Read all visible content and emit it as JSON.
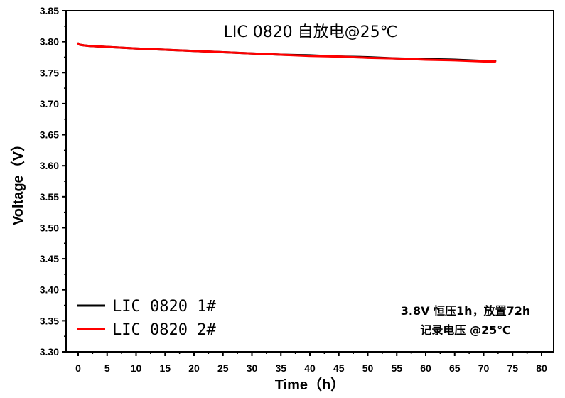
{
  "chart_data": {
    "type": "line",
    "title": "LIC 0820 自放电@25℃",
    "xlabel": "Time（h）",
    "ylabel": "Voltage（V）",
    "xlim": [
      0,
      80
    ],
    "ylim": [
      3.3,
      3.85
    ],
    "xticks": [
      "0",
      "5",
      "10",
      "15",
      "20",
      "25",
      "30",
      "35",
      "40",
      "45",
      "50",
      "55",
      "60",
      "65",
      "70",
      "75",
      "80"
    ],
    "yticks": [
      "3.30",
      "3.35",
      "3.40",
      "3.45",
      "3.50",
      "3.55",
      "3.60",
      "3.65",
      "3.70",
      "3.75",
      "3.80",
      "3.85"
    ],
    "grid": false,
    "legend_position": "bottom-left",
    "series": [
      {
        "name": "LIC 0820 1#",
        "color": "#000000",
        "x": [
          0,
          0.1,
          0.3,
          1,
          2,
          4,
          6,
          8,
          10,
          15,
          20,
          25,
          30,
          35,
          40,
          45,
          50,
          55,
          60,
          65,
          70,
          72
        ],
        "y": [
          3.797,
          3.796,
          3.795,
          3.794,
          3.793,
          3.792,
          3.791,
          3.79,
          3.789,
          3.787,
          3.785,
          3.783,
          3.781,
          3.779,
          3.778,
          3.776,
          3.775,
          3.773,
          3.772,
          3.771,
          3.769,
          3.769
        ]
      },
      {
        "name": "LIC 0820 2#",
        "color": "#ff0000",
        "x": [
          0,
          0.1,
          0.3,
          1,
          2,
          4,
          6,
          8,
          10,
          15,
          20,
          25,
          30,
          35,
          40,
          45,
          50,
          55,
          60,
          65,
          70,
          72
        ],
        "y": [
          3.797,
          3.796,
          3.795,
          3.794,
          3.793,
          3.792,
          3.791,
          3.79,
          3.789,
          3.787,
          3.785,
          3.783,
          3.781,
          3.779,
          3.777,
          3.776,
          3.774,
          3.773,
          3.771,
          3.77,
          3.768,
          3.768
        ]
      }
    ],
    "annotation": [
      "3.8V 恒压1h，放置72h",
      "记录电压 @25℃"
    ]
  }
}
